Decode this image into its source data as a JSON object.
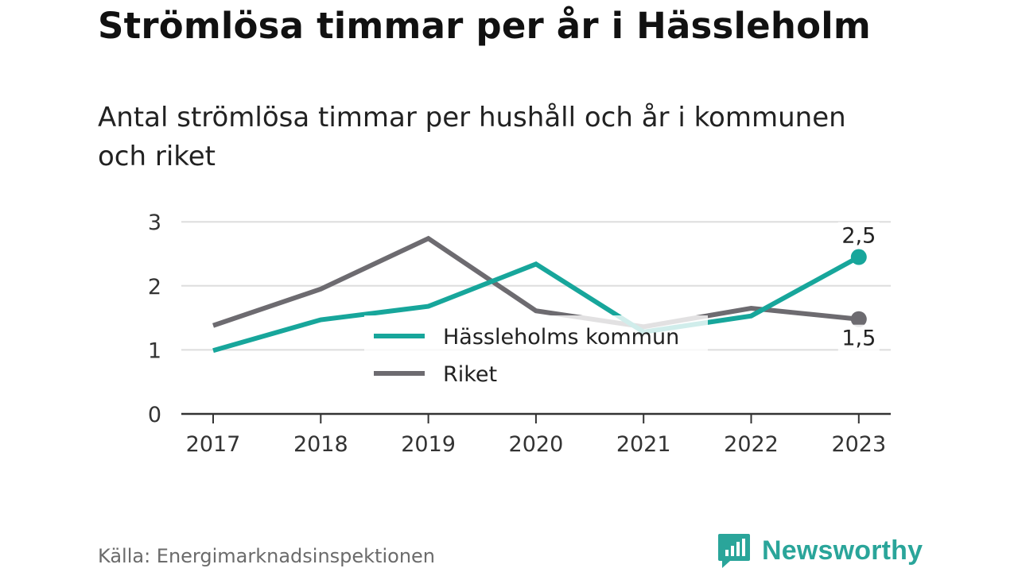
{
  "header": {
    "title": "Strömlösa timmar per år i Hässleholm",
    "subtitle": "Antal strömlösa timmar per hushåll och år i kommunen och riket"
  },
  "footer": {
    "source": "Källa: Energimarknadsinspektionen",
    "brand": "Newsworthy",
    "brand_icon": "bar-chart-speech-bubble-icon"
  },
  "colors": {
    "hassleholm": "#17a69b",
    "riket": "#6d6b70",
    "grid": "#dddddd",
    "axis": "#333333",
    "brand": "#2aa59a"
  },
  "chart_data": {
    "type": "line",
    "categories": [
      "2017",
      "2018",
      "2019",
      "2020",
      "2021",
      "2022",
      "2023"
    ],
    "y_ticks": [
      "0",
      "1",
      "2",
      "3"
    ],
    "ylim": [
      0,
      3
    ],
    "grid": true,
    "legend_position": "center",
    "series": [
      {
        "name": "Hässleholms kommun",
        "values": [
          0.99,
          1.47,
          1.68,
          2.34,
          1.28,
          1.53,
          2.45
        ],
        "end_label": "2,5",
        "end_label_position": "above"
      },
      {
        "name": "Riket",
        "values": [
          1.38,
          1.95,
          2.74,
          1.61,
          1.36,
          1.65,
          1.48
        ],
        "end_label": "1,5",
        "end_label_position": "below"
      }
    ]
  }
}
